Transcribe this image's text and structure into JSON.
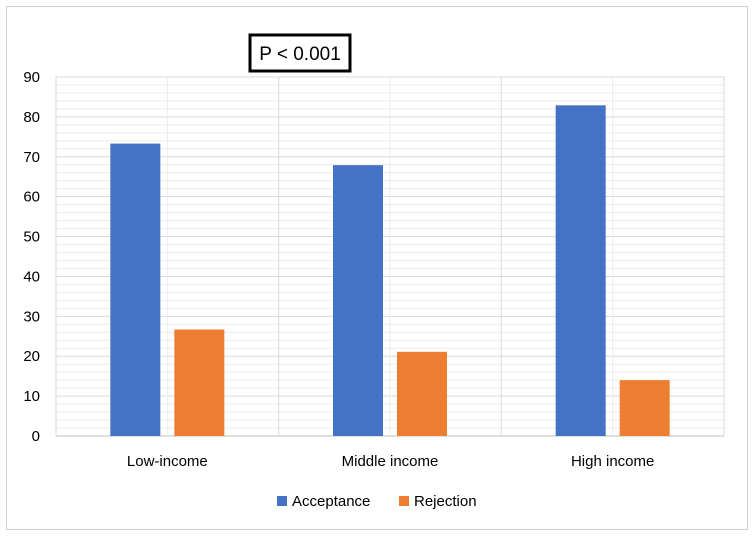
{
  "chart_data": {
    "type": "bar",
    "title": "",
    "xlabel": "",
    "ylabel": "",
    "categories": [
      "Low-income",
      "Middle income",
      "High income"
    ],
    "series": [
      {
        "name": "Acceptance",
        "color": "#4472C4",
        "values": [
          73.3,
          67.9,
          82.9
        ]
      },
      {
        "name": "Rejection",
        "color": "#ED7D31",
        "values": [
          26.7,
          21.1,
          14.0
        ]
      }
    ],
    "ylim": [
      0,
      90
    ],
    "yticks": [
      0,
      10,
      20,
      30,
      40,
      50,
      60,
      70,
      80,
      90
    ],
    "grid": true,
    "legend_position": "bottom",
    "annotation": "P < 0.001"
  }
}
